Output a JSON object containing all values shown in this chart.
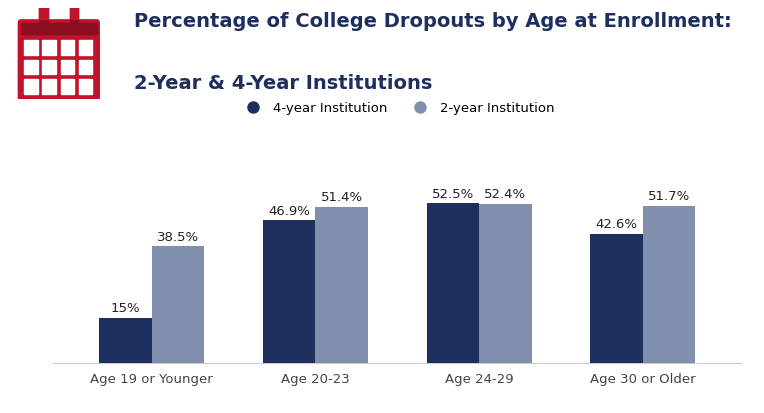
{
  "title_line1": "Percentage of College Dropouts by Age at Enrollment:",
  "title_line2": "2-Year & 4-Year Institutions",
  "categories": [
    "Age 19 or Younger",
    "Age 20-23",
    "Age 24-29",
    "Age 30 or Older"
  ],
  "four_year": [
    15.0,
    46.9,
    52.5,
    42.6
  ],
  "two_year": [
    38.5,
    51.4,
    52.4,
    51.7
  ],
  "four_year_color": "#1e2f5e",
  "two_year_color": "#7f8fad",
  "four_year_label": "4-year Institution",
  "two_year_label": "2-year Institution",
  "bar_width": 0.32,
  "label_fontsize": 9.5,
  "title_fontsize": 14,
  "title_color": "#1e2f5e",
  "bg_color": "#ffffff",
  "icon_color": "#c0142c",
  "ylim": [
    0,
    65
  ],
  "value_fontsize": 9.5
}
